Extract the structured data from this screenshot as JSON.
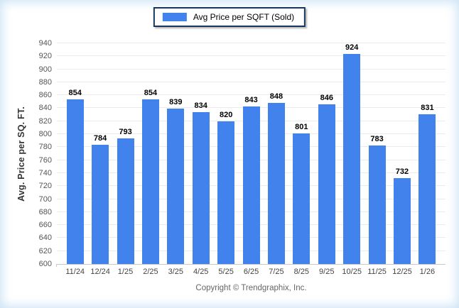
{
  "legend": {
    "label": "Avg Price per SQFT (Sold)",
    "swatch_color": "#4182ec"
  },
  "chart_data": {
    "type": "bar",
    "title": "",
    "xlabel": "",
    "ylabel": "Avg. Price per SQ. FT.",
    "categories": [
      "11/24",
      "12/24",
      "1/25",
      "2/25",
      "3/25",
      "4/25",
      "5/25",
      "6/25",
      "7/25",
      "8/25",
      "9/25",
      "10/25",
      "11/25",
      "12/25",
      "1/26"
    ],
    "series": [
      {
        "name": "Avg Price per SQFT (Sold)",
        "values": [
          854,
          784,
          793,
          854,
          839,
          834,
          820,
          843,
          848,
          801,
          846,
          924,
          783,
          732,
          831
        ]
      }
    ],
    "ylim": [
      600,
      940
    ],
    "ytick_step": 20,
    "grid": true,
    "legend_position": "top-center",
    "bar_color": "#4182ec",
    "data_labels": true
  },
  "footer": {
    "copyright": "Copyright © Trendgraphix, Inc."
  },
  "colors": {
    "bar": "#4182ec",
    "legend_border": "#17365d",
    "gridline": "#ebebeb",
    "axis_line": "#c9c9c9",
    "tick_label": "#555555",
    "data_label": "#000000",
    "footer_text": "#666666"
  }
}
